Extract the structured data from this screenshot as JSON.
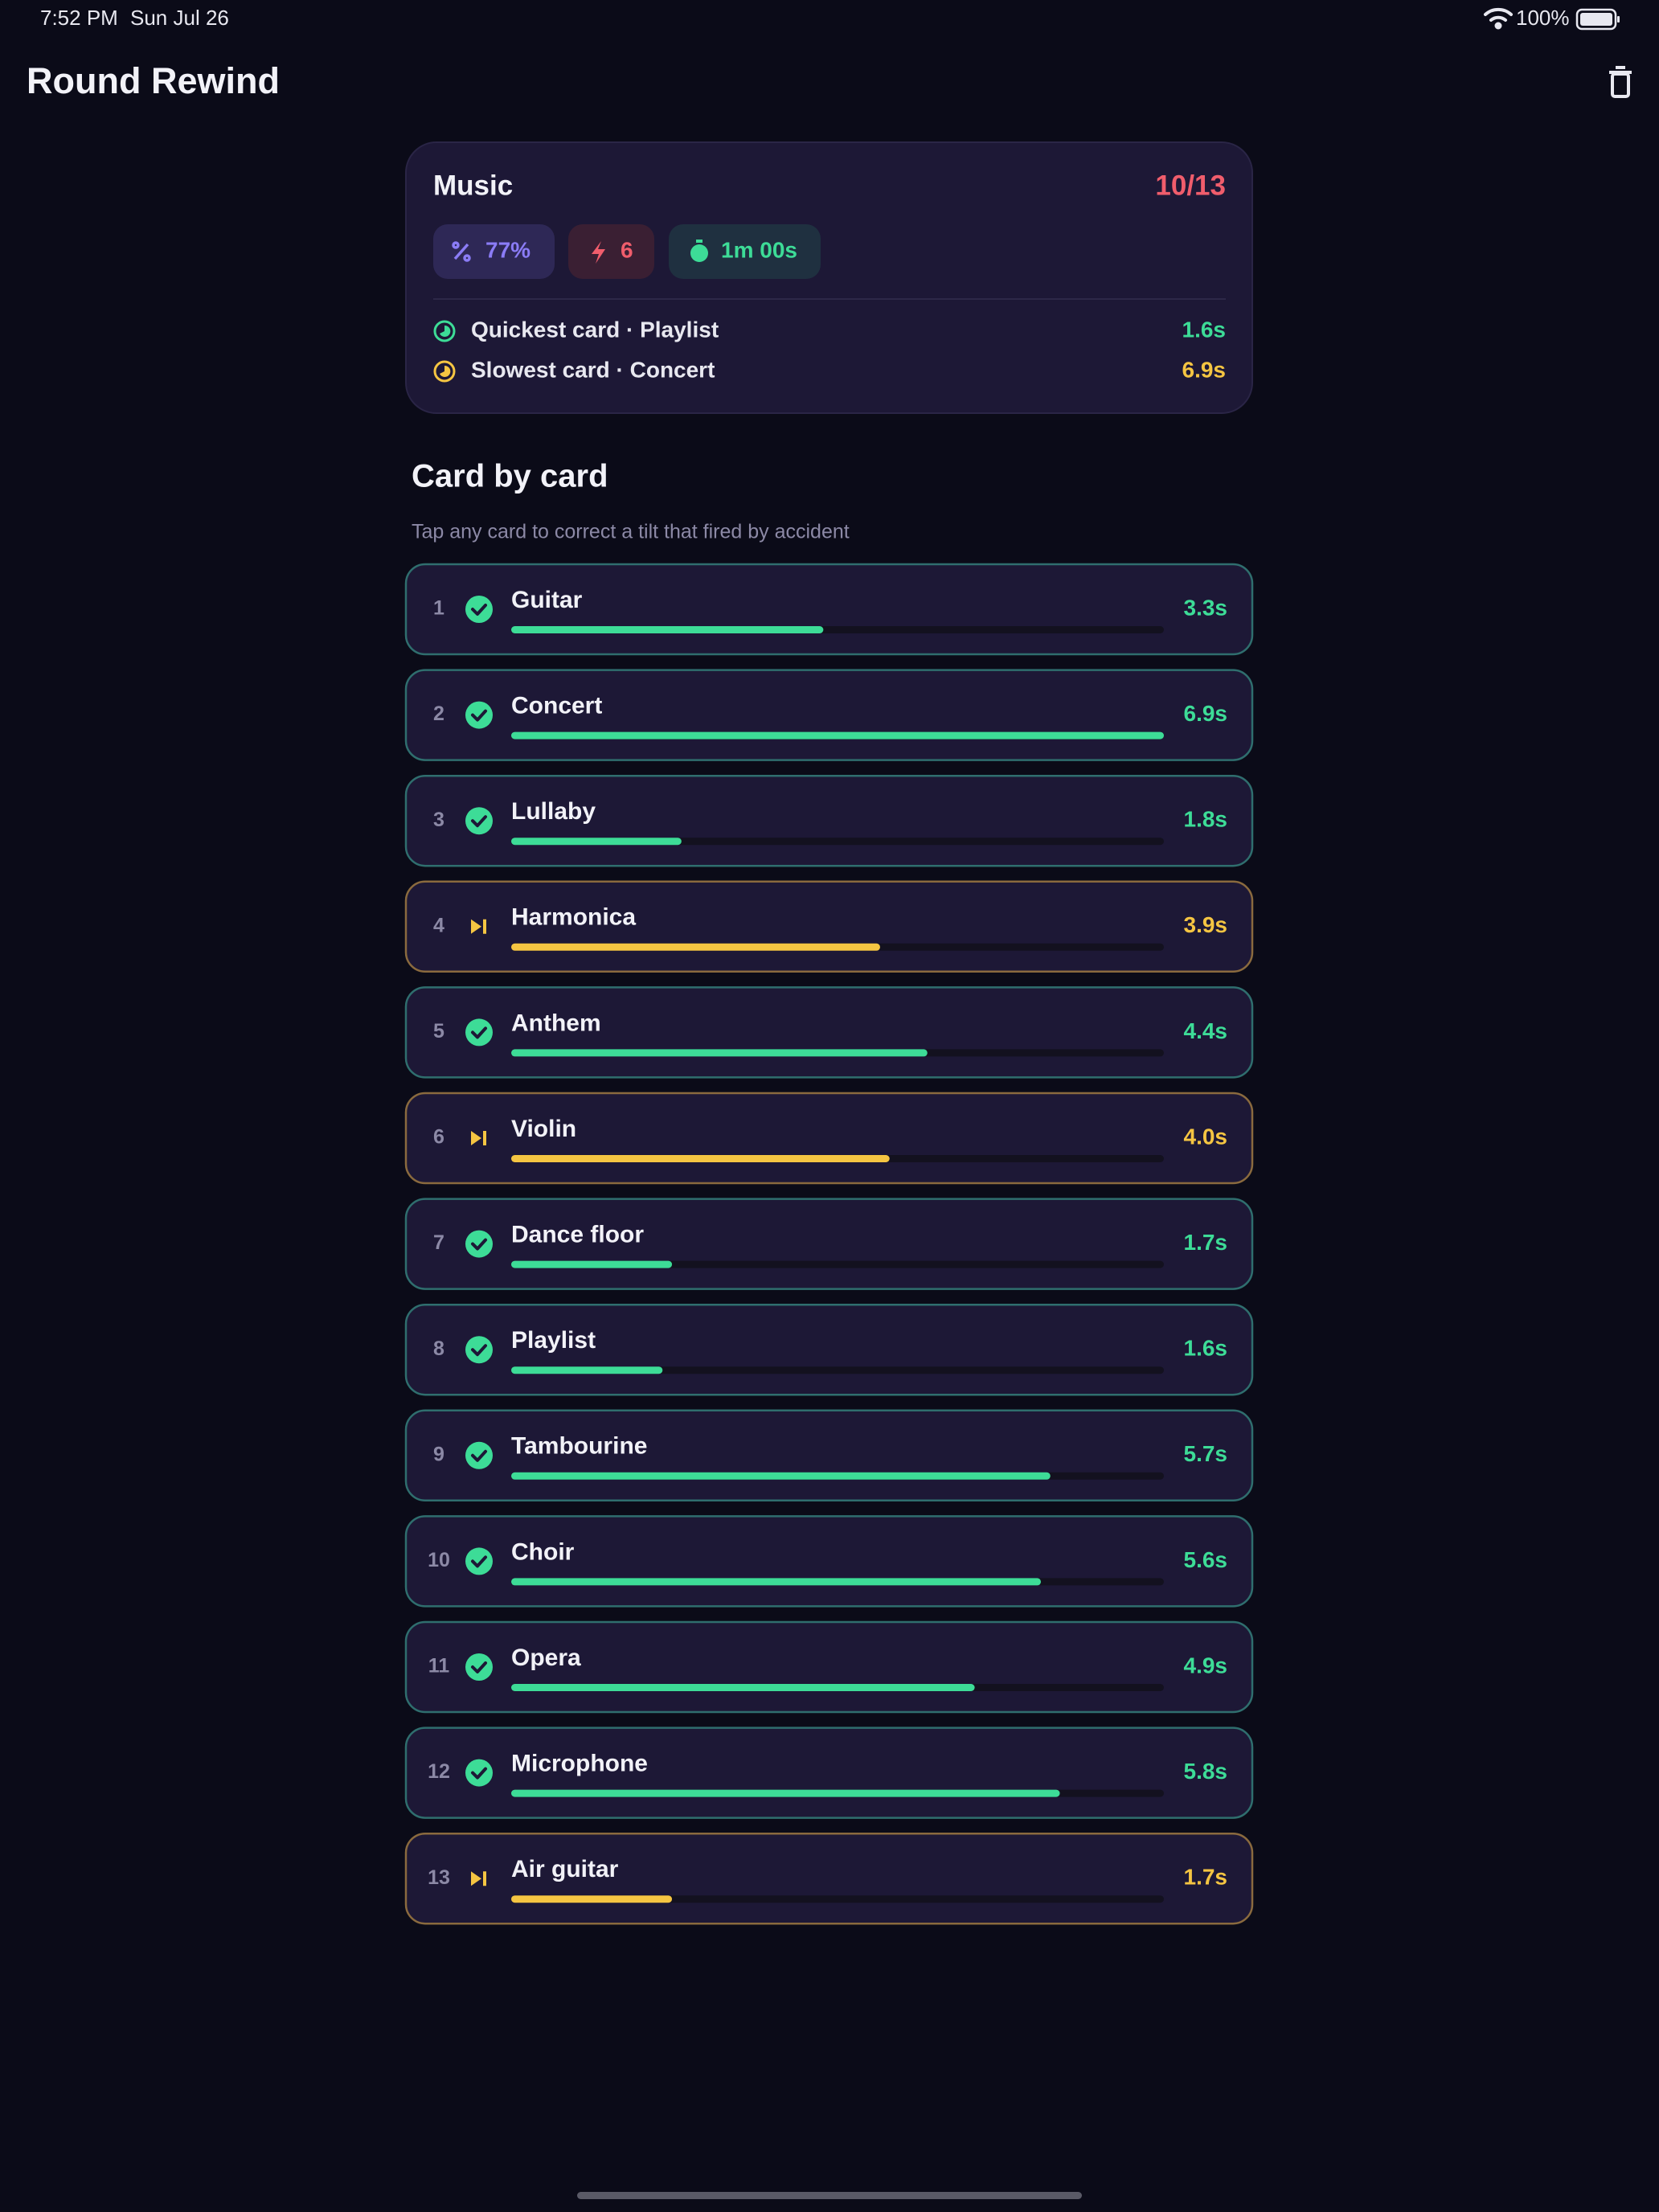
{
  "status_bar": {
    "time": "7:52 PM",
    "date": "Sun Jul 26",
    "battery": "100%"
  },
  "header": {
    "title": "Round Rewind"
  },
  "summary": {
    "category": "Music",
    "score": "10/13",
    "chips": [
      "77%",
      "6",
      "1m 00s"
    ],
    "quickest": {
      "label": "Quickest card · Playlist",
      "time": "1.6s"
    },
    "slowest": {
      "label": "Slowest card · Concert",
      "time": "6.9s"
    }
  },
  "section": {
    "title": "Card by card",
    "subtitle": "Tap any card to correct a tilt that fired by accident"
  },
  "colors": {
    "correct": "#3ddc97",
    "skipped": "#f5c542"
  },
  "cards": [
    {
      "number": "1",
      "word": "Guitar",
      "status": "correct",
      "seconds": 3.3,
      "time": "3.3s"
    },
    {
      "number": "2",
      "word": "Concert",
      "status": "correct",
      "seconds": 6.9,
      "time": "6.9s"
    },
    {
      "number": "3",
      "word": "Lullaby",
      "status": "correct",
      "seconds": 1.8,
      "time": "1.8s"
    },
    {
      "number": "4",
      "word": "Harmonica",
      "status": "skipped",
      "seconds": 3.9,
      "time": "3.9s"
    },
    {
      "number": "5",
      "word": "Anthem",
      "status": "correct",
      "seconds": 4.4,
      "time": "4.4s"
    },
    {
      "number": "6",
      "word": "Violin",
      "status": "skipped",
      "seconds": 4.0,
      "time": "4.0s"
    },
    {
      "number": "7",
      "word": "Dance floor",
      "status": "correct",
      "seconds": 1.7,
      "time": "1.7s"
    },
    {
      "number": "8",
      "word": "Playlist",
      "status": "correct",
      "seconds": 1.6,
      "time": "1.6s"
    },
    {
      "number": "9",
      "word": "Tambourine",
      "status": "correct",
      "seconds": 5.7,
      "time": "5.7s"
    },
    {
      "number": "10",
      "word": "Choir",
      "status": "correct",
      "seconds": 5.6,
      "time": "5.6s"
    },
    {
      "number": "11",
      "word": "Opera",
      "status": "correct",
      "seconds": 4.9,
      "time": "4.9s"
    },
    {
      "number": "12",
      "word": "Microphone",
      "status": "correct",
      "seconds": 5.8,
      "time": "5.8s"
    },
    {
      "number": "13",
      "word": "Air guitar",
      "status": "skipped",
      "seconds": 1.7,
      "time": "1.7s"
    }
  ]
}
